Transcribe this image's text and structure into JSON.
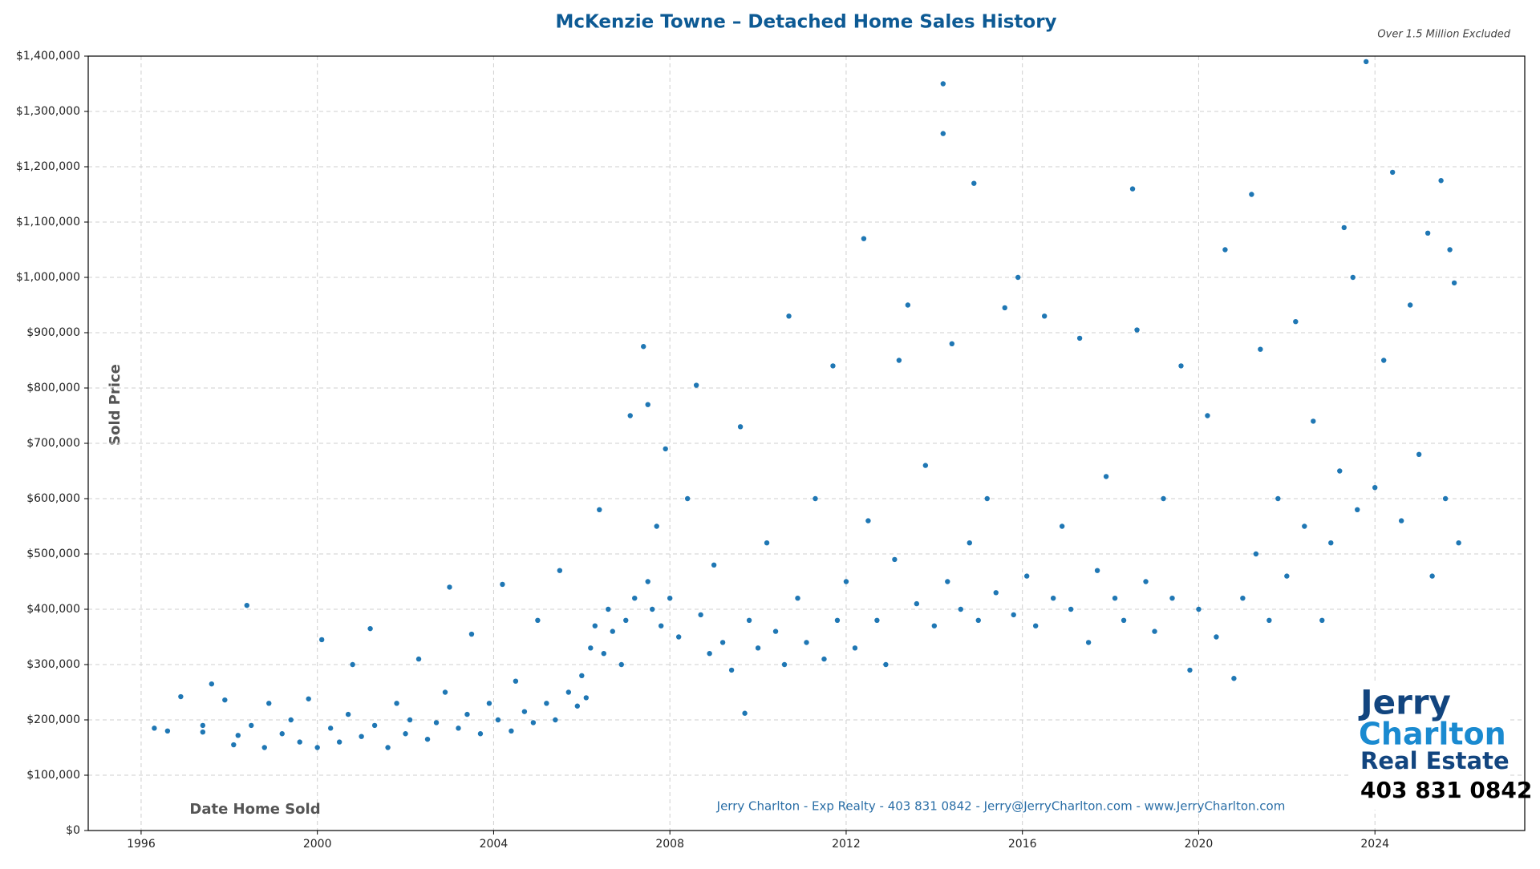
{
  "chart_data": {
    "type": "scatter",
    "title": "McKenzie Towne – Detached Home Sales History",
    "subtitle": "Over 1.5 Million Excluded",
    "ylabel": "Sold Price",
    "xlabel": "Date Home Sold",
    "footer": "Jerry Charlton - Exp Realty - 403 831 0842 - Jerry@JerryCharlton.com - www.JerryCharlton.com",
    "logo": {
      "line1": "Jerry",
      "line2": "Charlton",
      "line3": "Real Estate",
      "phone": "403 831 0842"
    },
    "color": "#1f77b4",
    "grid": true,
    "xlim": [
      1994.8,
      2027.4
    ],
    "ylim": [
      0,
      1400000
    ],
    "xticks": [
      1996,
      2000,
      2004,
      2008,
      2012,
      2016,
      2020,
      2024
    ],
    "yticks": [
      {
        "value": 0,
        "label": "$0"
      },
      {
        "value": 100000,
        "label": "$100,000"
      },
      {
        "value": 200000,
        "label": "$200,000"
      },
      {
        "value": 300000,
        "label": "$300,000"
      },
      {
        "value": 400000,
        "label": "$400,000"
      },
      {
        "value": 500000,
        "label": "$500,000"
      },
      {
        "value": 600000,
        "label": "$600,000"
      },
      {
        "value": 700000,
        "label": "$700,000"
      },
      {
        "value": 800000,
        "label": "$800,000"
      },
      {
        "value": 900000,
        "label": "$900,000"
      },
      {
        "value": 1000000,
        "label": "$1,000,000"
      },
      {
        "value": 1100000,
        "label": "$1,100,000"
      },
      {
        "value": 1200000,
        "label": "$1,200,000"
      },
      {
        "value": 1300000,
        "label": "$1,300,000"
      },
      {
        "value": 1400000,
        "label": "$1,400,000"
      }
    ],
    "x": [
      1996.3,
      1996.6,
      1996.9,
      1997.4,
      1997.4,
      1997.6,
      1997.9,
      1998.1,
      1998.2,
      1998.4,
      1998.5,
      1998.8,
      1998.9,
      1999.2,
      1999.4,
      1999.6,
      1999.8,
      2000.0,
      2000.1,
      2000.3,
      2000.5,
      2000.7,
      2000.8,
      2001.0,
      2001.2,
      2001.3,
      2001.6,
      2001.8,
      2002.0,
      2002.1,
      2002.3,
      2002.5,
      2002.7,
      2002.9,
      2003.0,
      2003.2,
      2003.4,
      2003.5,
      2003.7,
      2003.9,
      2004.1,
      2004.2,
      2004.4,
      2004.5,
      2004.7,
      2004.9,
      2005.0,
      2005.2,
      2005.4,
      2005.5,
      2005.7,
      2005.9,
      2006.0,
      2006.1,
      2006.2,
      2006.3,
      2006.4,
      2006.5,
      2006.6,
      2006.7,
      2006.9,
      2007.0,
      2007.1,
      2007.2,
      2007.4,
      2007.5,
      2007.5,
      2007.6,
      2007.7,
      2007.8,
      2007.9,
      2008.0,
      2008.2,
      2008.4,
      2008.6,
      2008.7,
      2008.9,
      2009.0,
      2009.2,
      2009.4,
      2009.6,
      2009.7,
      2009.8,
      2010.0,
      2010.2,
      2010.4,
      2010.6,
      2010.7,
      2010.9,
      2011.1,
      2011.3,
      2011.5,
      2011.7,
      2011.8,
      2012.0,
      2012.2,
      2012.4,
      2012.5,
      2012.7,
      2012.9,
      2013.1,
      2013.2,
      2013.4,
      2013.6,
      2013.8,
      2014.0,
      2014.2,
      2014.2,
      2014.3,
      2014.4,
      2014.6,
      2014.8,
      2014.9,
      2015.0,
      2015.2,
      2015.4,
      2015.6,
      2015.8,
      2015.9,
      2016.1,
      2016.3,
      2016.5,
      2016.7,
      2016.9,
      2017.1,
      2017.3,
      2017.5,
      2017.7,
      2017.9,
      2018.1,
      2018.3,
      2018.5,
      2018.6,
      2018.8,
      2019.0,
      2019.2,
      2019.4,
      2019.6,
      2019.8,
      2020.0,
      2020.2,
      2020.4,
      2020.6,
      2020.8,
      2021.0,
      2021.2,
      2021.3,
      2021.4,
      2021.6,
      2021.8,
      2022.0,
      2022.2,
      2022.4,
      2022.6,
      2022.8,
      2023.0,
      2023.2,
      2023.3,
      2023.5,
      2023.6,
      2023.8,
      2024.0,
      2024.2,
      2024.4,
      2024.6,
      2024.8,
      2025.0,
      2025.2,
      2025.3,
      2025.5,
      2025.6,
      2025.7,
      2025.8,
      2025.9
    ],
    "values": [
      185000,
      180000,
      242000,
      190000,
      178000,
      265000,
      236000,
      155000,
      172000,
      407000,
      190000,
      150000,
      230000,
      175000,
      200000,
      160000,
      238000,
      150000,
      345000,
      185000,
      160000,
      210000,
      300000,
      170000,
      365000,
      190000,
      150000,
      230000,
      175000,
      200000,
      310000,
      165000,
      195000,
      250000,
      440000,
      185000,
      210000,
      355000,
      175000,
      230000,
      200000,
      445000,
      180000,
      270000,
      215000,
      195000,
      380000,
      230000,
      200000,
      470000,
      250000,
      225000,
      280000,
      240000,
      330000,
      370000,
      580000,
      320000,
      400000,
      360000,
      300000,
      380000,
      750000,
      420000,
      875000,
      450000,
      770000,
      400000,
      550000,
      370000,
      690000,
      420000,
      350000,
      600000,
      805000,
      390000,
      320000,
      480000,
      340000,
      290000,
      730000,
      212000,
      380000,
      330000,
      520000,
      360000,
      300000,
      930000,
      420000,
      340000,
      600000,
      310000,
      840000,
      380000,
      450000,
      330000,
      1070000,
      560000,
      380000,
      300000,
      490000,
      850000,
      950000,
      410000,
      660000,
      370000,
      1350000,
      1260000,
      450000,
      880000,
      400000,
      520000,
      1170000,
      380000,
      600000,
      430000,
      945000,
      390000,
      1000000,
      460000,
      370000,
      930000,
      420000,
      550000,
      400000,
      890000,
      340000,
      470000,
      640000,
      420000,
      380000,
      1160000,
      905000,
      450000,
      360000,
      600000,
      420000,
      840000,
      290000,
      400000,
      750000,
      350000,
      1050000,
      275000,
      420000,
      1150000,
      500000,
      870000,
      380000,
      600000,
      460000,
      920000,
      550000,
      740000,
      380000,
      520000,
      650000,
      1090000,
      1000000,
      580000,
      1390000,
      620000,
      850000,
      1190000,
      560000,
      950000,
      680000,
      1080000,
      460000,
      1175000,
      600000,
      1050000,
      990000,
      520000
    ]
  }
}
